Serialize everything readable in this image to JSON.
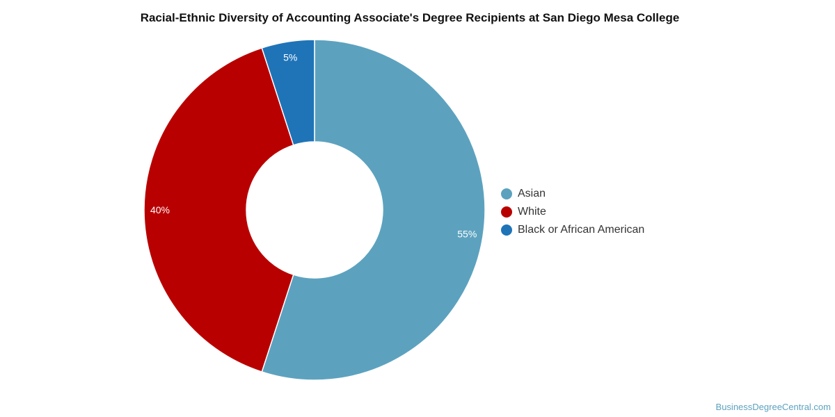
{
  "chart_data": {
    "type": "pie",
    "title": "Racial-Ethnic Diversity of Accounting Associate's Degree Recipients at San Diego Mesa College",
    "donut": true,
    "legend_position": "right",
    "slices": [
      {
        "label": "Asian",
        "value": 55,
        "display": "55%",
        "color": "#5ca2bf"
      },
      {
        "label": "White",
        "value": 40,
        "display": "40%",
        "color": "#b90000"
      },
      {
        "label": "Black or African American",
        "value": 5,
        "display": "5%",
        "color": "#1f74b8"
      }
    ]
  },
  "watermark": "BusinessDegreeCentral.com"
}
